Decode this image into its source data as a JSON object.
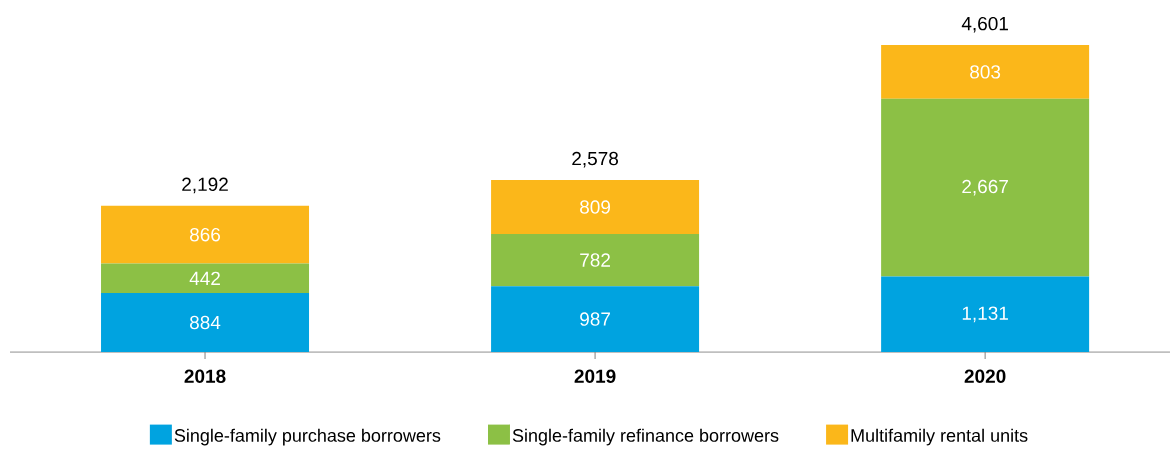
{
  "chart_data": {
    "type": "bar",
    "stacked": true,
    "categories": [
      "2018",
      "2019",
      "2020"
    ],
    "series": [
      {
        "name": "Single-family purchase borrowers",
        "color": "#00a3e0",
        "values": [
          884,
          987,
          1131
        ],
        "value_labels": [
          "884",
          "987",
          "1,131"
        ]
      },
      {
        "name": "Single-family refinance borrowers",
        "color": "#8cc045",
        "values": [
          442,
          782,
          2667
        ],
        "value_labels": [
          "442",
          "782",
          "2,667"
        ]
      },
      {
        "name": "Multifamily rental units",
        "color": "#fbb71a",
        "values": [
          866,
          809,
          803
        ],
        "value_labels": [
          "866",
          "809",
          "803"
        ]
      }
    ],
    "totals": [
      "2,192",
      "2,578",
      "4,601"
    ],
    "legend": "bottom"
  }
}
